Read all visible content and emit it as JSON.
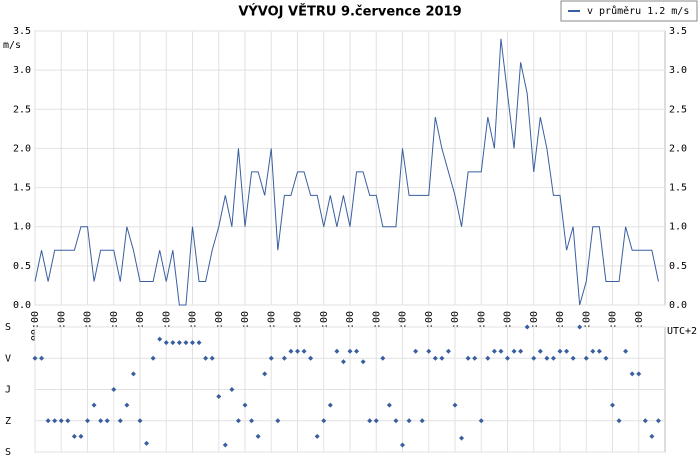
{
  "chart_data": [
    {
      "type": "line",
      "title": "VÝVOJ VĚTRU  9.července 2019",
      "y_label": "m/s",
      "timezone": "UTC+2",
      "x": [
        "00:00",
        "00:15",
        "00:30",
        "00:45",
        "01:00",
        "01:15",
        "01:30",
        "01:45",
        "02:00",
        "02:15",
        "02:30",
        "02:45",
        "03:00",
        "03:15",
        "03:30",
        "03:45",
        "04:00",
        "04:15",
        "04:30",
        "04:45",
        "05:00",
        "05:15",
        "05:30",
        "05:45",
        "06:00",
        "06:15",
        "06:30",
        "06:45",
        "07:00",
        "07:15",
        "07:30",
        "07:45",
        "08:00",
        "08:15",
        "08:30",
        "08:45",
        "09:00",
        "09:15",
        "09:30",
        "09:45",
        "10:00",
        "10:15",
        "10:30",
        "10:45",
        "11:00",
        "11:15",
        "11:30",
        "11:45",
        "12:00",
        "12:15",
        "12:30",
        "12:45",
        "13:00",
        "13:15",
        "13:30",
        "13:45",
        "14:00",
        "14:15",
        "14:30",
        "14:45",
        "15:00",
        "15:15",
        "15:30",
        "15:45",
        "16:00",
        "16:15",
        "16:30",
        "16:45",
        "17:00",
        "17:15",
        "17:30",
        "17:45",
        "18:00",
        "18:15",
        "18:30",
        "18:45",
        "19:00",
        "19:15",
        "19:30",
        "19:45",
        "20:00",
        "20:15",
        "20:30",
        "20:45",
        "21:00",
        "21:15",
        "21:30",
        "21:45",
        "22:00",
        "22:15",
        "22:30",
        "22:45",
        "23:00",
        "23:15",
        "23:30",
        "23:45"
      ],
      "series": [
        {
          "name": "v průměru 1.2 m/s",
          "color": "#3a5fa0",
          "values": [
            0.3,
            0.7,
            0.3,
            0.7,
            0.7,
            0.7,
            0.7,
            1.0,
            1.0,
            0.3,
            0.7,
            0.7,
            0.7,
            0.3,
            1.0,
            0.7,
            0.3,
            0.3,
            0.3,
            0.7,
            0.3,
            0.7,
            0.0,
            0.0,
            1.0,
            0.3,
            0.3,
            0.7,
            1.0,
            1.4,
            1.0,
            2.0,
            1.0,
            1.7,
            1.7,
            1.4,
            2.0,
            0.7,
            1.4,
            1.4,
            1.7,
            1.7,
            1.4,
            1.4,
            1.0,
            1.4,
            1.0,
            1.4,
            1.0,
            1.7,
            1.7,
            1.4,
            1.4,
            1.0,
            1.0,
            1.0,
            2.0,
            1.4,
            1.4,
            1.4,
            1.4,
            2.4,
            2.0,
            1.7,
            1.4,
            1.0,
            1.7,
            1.7,
            1.7,
            2.4,
            2.0,
            3.4,
            2.7,
            2.0,
            3.1,
            2.7,
            1.7,
            2.4,
            2.0,
            1.4,
            1.4,
            0.7,
            1.0,
            0.0,
            0.3,
            1.0,
            1.0,
            0.3,
            0.3,
            0.3,
            1.0,
            0.7,
            0.7,
            0.7,
            0.7,
            0.3
          ]
        }
      ],
      "xlim": [
        "00:00",
        "24:00"
      ],
      "xticks": [
        "00:00",
        "01:00",
        "02:00",
        "03:00",
        "04:00",
        "05:00",
        "06:00",
        "07:00",
        "08:00",
        "09:00",
        "10:00",
        "11:00",
        "12:00",
        "13:00",
        "14:00",
        "15:00",
        "16:00",
        "17:00",
        "18:00",
        "19:00",
        "20:00",
        "21:00",
        "22:00",
        "23:00"
      ],
      "ylim": [
        0,
        3.5
      ],
      "yticks": [
        {
          "value": 0,
          "label": "0.0"
        },
        0.5,
        {
          "value": 1,
          "label": "1.0"
        },
        1.5,
        {
          "value": 2,
          "label": "2.0"
        },
        2.5,
        {
          "value": 3,
          "label": "3.0"
        },
        3.5
      ],
      "grid": true,
      "legend": "top-right"
    },
    {
      "type": "scatter",
      "color": "#3a5fa0",
      "x": [
        "00:00",
        "00:15",
        "00:30",
        "00:45",
        "01:00",
        "01:15",
        "01:30",
        "01:45",
        "02:00",
        "02:15",
        "02:30",
        "02:45",
        "03:00",
        "03:15",
        "03:30",
        "03:45",
        "04:00",
        "04:15",
        "04:30",
        "04:45",
        "05:00",
        "05:15",
        "05:30",
        "05:45",
        "06:00",
        "06:15",
        "06:30",
        "06:45",
        "07:00",
        "07:15",
        "07:30",
        "07:45",
        "08:00",
        "08:15",
        "08:30",
        "08:45",
        "09:00",
        "09:15",
        "09:30",
        "09:45",
        "10:00",
        "10:15",
        "10:30",
        "10:45",
        "11:00",
        "11:15",
        "11:30",
        "11:45",
        "12:00",
        "12:15",
        "12:30",
        "12:45",
        "13:00",
        "13:15",
        "13:30",
        "13:45",
        "14:00",
        "14:15",
        "14:30",
        "14:45",
        "15:00",
        "15:15",
        "15:30",
        "15:45",
        "16:00",
        "16:15",
        "16:30",
        "16:45",
        "17:00",
        "17:15",
        "17:30",
        "17:45",
        "18:00",
        "18:15",
        "18:30",
        "18:45",
        "19:00",
        "19:15",
        "19:30",
        "19:45",
        "20:00",
        "20:15",
        "20:30",
        "20:45",
        "21:00",
        "21:15",
        "21:30",
        "21:45",
        "22:00",
        "22:15",
        "22:30",
        "22:45",
        "23:00",
        "23:15",
        "23:30",
        "23:45"
      ],
      "values": [
        90,
        90,
        270,
        270,
        270,
        270,
        315,
        315,
        270,
        225,
        270,
        270,
        180,
        270,
        225,
        135,
        270,
        335,
        90,
        35,
        45,
        45,
        45,
        45,
        45,
        45,
        90,
        90,
        200,
        340,
        180,
        270,
        225,
        270,
        315,
        135,
        90,
        270,
        90,
        70,
        70,
        70,
        90,
        315,
        270,
        225,
        70,
        100,
        70,
        70,
        100,
        270,
        270,
        90,
        225,
        270,
        340,
        270,
        70,
        270,
        70,
        90,
        90,
        70,
        225,
        320,
        90,
        90,
        270,
        90,
        70,
        70,
        90,
        70,
        70,
        0,
        90,
        70,
        90,
        90,
        70,
        70,
        90,
        0,
        90,
        70,
        70,
        90,
        225,
        270,
        70,
        135,
        135,
        270,
        315,
        270
      ],
      "xlim": [
        "00:00",
        "24:00"
      ],
      "ylim": [
        0,
        360
      ],
      "yticks": [
        {
          "value": 0,
          "label": "S"
        },
        {
          "value": 90,
          "label": "V"
        },
        {
          "value": 180,
          "label": "J"
        },
        {
          "value": 270,
          "label": "Z"
        },
        {
          "value": 360,
          "label": "S"
        }
      ],
      "grid": true
    }
  ]
}
